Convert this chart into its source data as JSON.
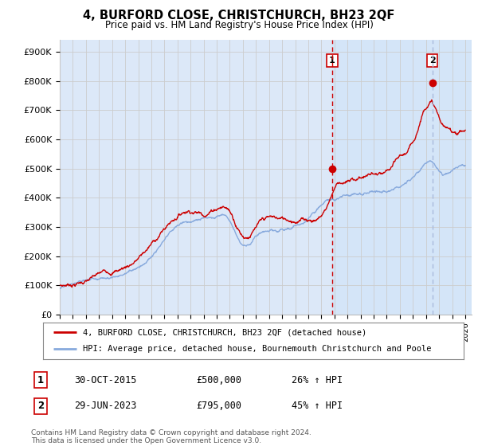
{
  "title": "4, BURFORD CLOSE, CHRISTCHURCH, BH23 2QF",
  "subtitle": "Price paid vs. HM Land Registry's House Price Index (HPI)",
  "ylabel_ticks": [
    "£0",
    "£100K",
    "£200K",
    "£300K",
    "£400K",
    "£500K",
    "£600K",
    "£700K",
    "£800K",
    "£900K"
  ],
  "ytick_values": [
    0,
    100000,
    200000,
    300000,
    400000,
    500000,
    600000,
    700000,
    800000,
    900000
  ],
  "ylim": [
    0,
    940000
  ],
  "xlim_start": 1995.0,
  "xlim_end": 2026.5,
  "sale1_x": 2015.83,
  "sale1_y": 500000,
  "sale2_x": 2023.49,
  "sale2_y": 795000,
  "legend_entry1": "4, BURFORD CLOSE, CHRISTCHURCH, BH23 2QF (detached house)",
  "legend_entry2": "HPI: Average price, detached house, Bournemouth Christchurch and Poole",
  "table_row1_num": "1",
  "table_row1_date": "30-OCT-2015",
  "table_row1_price": "£500,000",
  "table_row1_pct": "26% ↑ HPI",
  "table_row2_num": "2",
  "table_row2_date": "29-JUN-2023",
  "table_row2_price": "£795,000",
  "table_row2_pct": "45% ↑ HPI",
  "footer": "Contains HM Land Registry data © Crown copyright and database right 2024.\nThis data is licensed under the Open Government Licence v3.0.",
  "line_color_red": "#cc0000",
  "line_color_blue": "#88aadd",
  "grid_color": "#cccccc",
  "plot_bg": "#dce8f8",
  "shade_color": "#c8d8f0",
  "dashed_color_red": "#cc0000",
  "dashed_color_blue": "#aabbdd"
}
